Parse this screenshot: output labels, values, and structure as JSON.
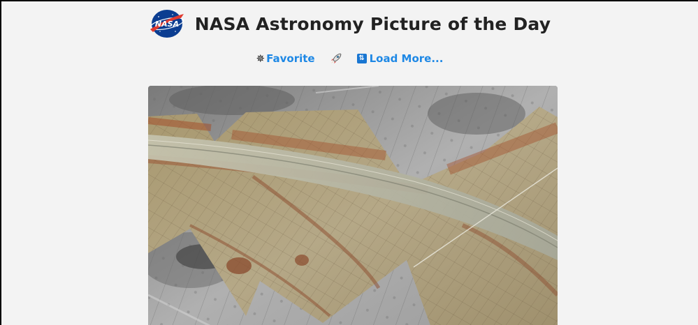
{
  "header": {
    "title": "NASA Astronomy Picture of the Day",
    "logo_icon": "nasa-meatball-logo"
  },
  "nav": {
    "favorite_label": "Favorite",
    "favorite_icon": "sparkle-burst-icon",
    "rocket_icon": "rocket-icon",
    "load_more_label": "Load More...",
    "load_more_icon": "reload-icon"
  },
  "colors": {
    "background": "#f3f3f3",
    "link": "#1e88e5",
    "title": "#222222"
  },
  "photo": {
    "subject_icon": "europa-surface-image"
  }
}
